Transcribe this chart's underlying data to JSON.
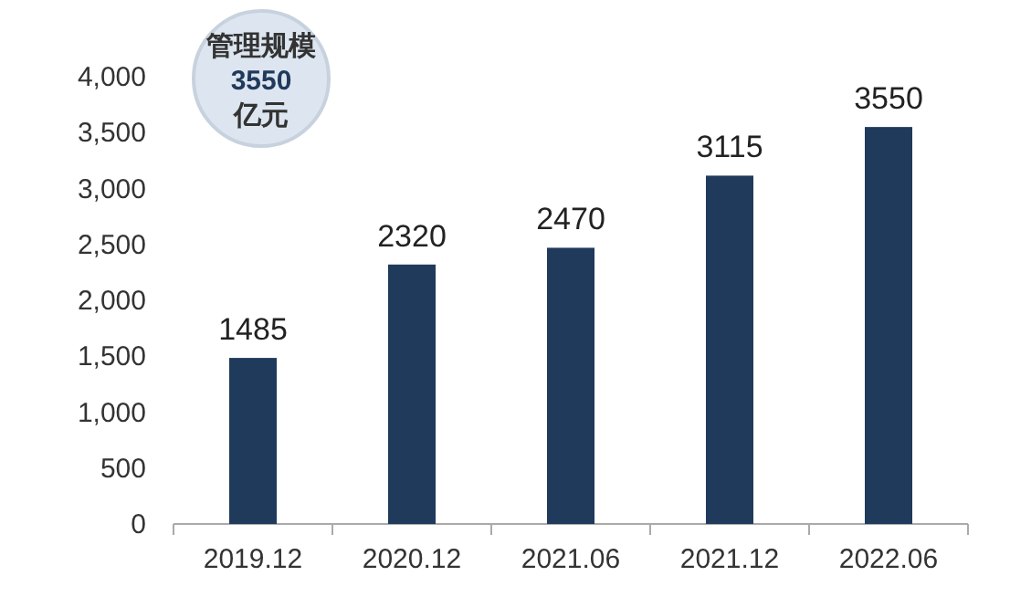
{
  "chart_data": {
    "type": "bar",
    "categories": [
      "2019.12",
      "2020.12",
      "2021.06",
      "2021.12",
      "2022.06"
    ],
    "values": [
      1485,
      2320,
      2470,
      3115,
      3550
    ],
    "color": "#203a5c",
    "data_labels": true,
    "ylim": [
      0,
      4000
    ],
    "yticks": [
      0,
      {
        "value": 500,
        "label": "500"
      },
      {
        "value": 1000,
        "label": "1,000"
      },
      {
        "value": 1500,
        "label": "1,500"
      },
      {
        "value": 2000,
        "label": "2,000"
      },
      {
        "value": 2500,
        "label": "2,500"
      },
      {
        "value": 3000,
        "label": "3,000"
      },
      {
        "value": 3500,
        "label": "3,500"
      },
      {
        "value": 4000,
        "label": "4,000"
      }
    ],
    "annotations": [
      "管理规模\n3550\n亿元"
    ]
  }
}
